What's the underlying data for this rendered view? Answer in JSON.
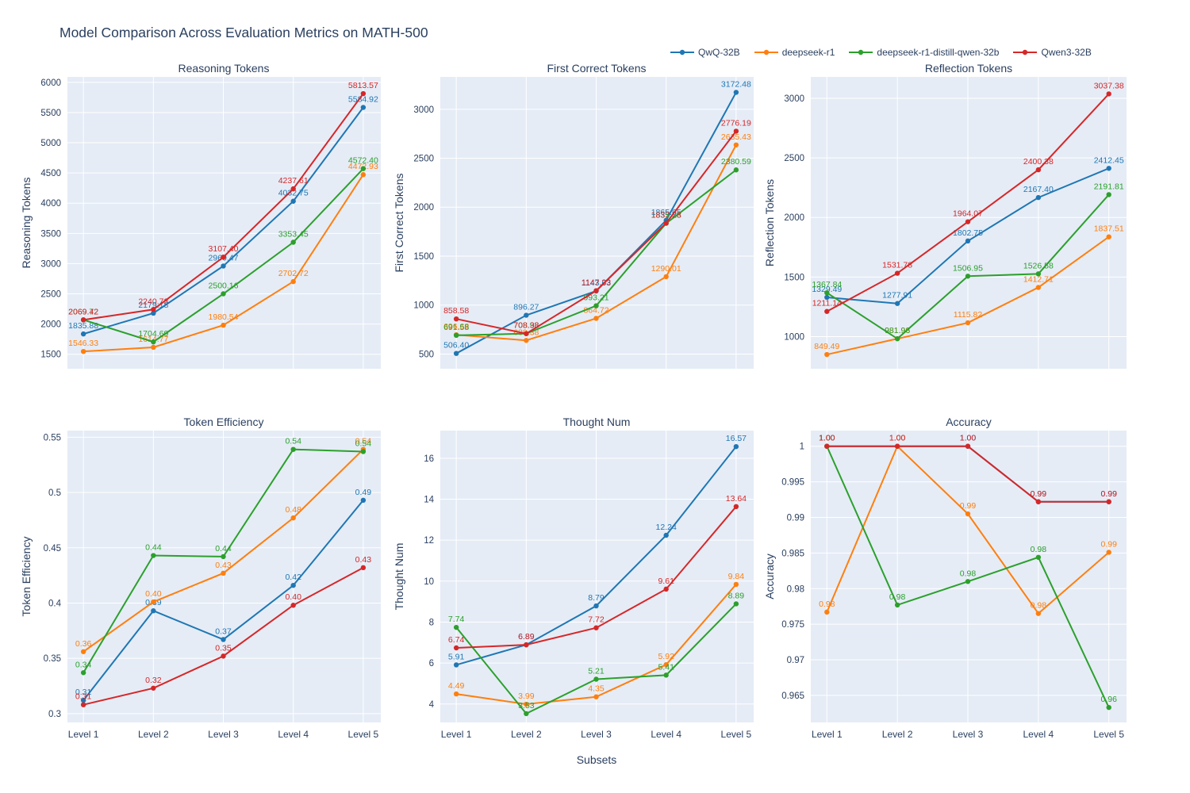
{
  "title": "Model Comparison Across Evaluation Metrics on MATH-500",
  "xlabel": "Subsets",
  "categories": [
    "Level 1",
    "Level 2",
    "Level 3",
    "Level 4",
    "Level 5"
  ],
  "models": [
    {
      "name": "QwQ-32B",
      "color": "#1f77b4"
    },
    {
      "name": "deepseek-r1",
      "color": "#ff7f0e"
    },
    {
      "name": "deepseek-r1-distill-qwen-32b",
      "color": "#2ca02c"
    },
    {
      "name": "Qwen3-32B",
      "color": "#d62728"
    }
  ],
  "style": {
    "plot_bg": "#e5ecf6",
    "grid": "#ffffff",
    "text": "#2a3f5f"
  },
  "chart_data": [
    {
      "type": "line",
      "title": "Reasoning Tokens",
      "ylabel": "Reasoning Tokens",
      "categories": [
        "Level 1",
        "Level 2",
        "Level 3",
        "Level 4",
        "Level 5"
      ],
      "yticks": [
        1500,
        2000,
        2500,
        3000,
        3500,
        4000,
        4500,
        5000,
        5500,
        6000
      ],
      "ylim": [
        1260,
        6090
      ],
      "series": [
        {
          "name": "QwQ-32B",
          "values": [
            1835.88,
            2179.18,
            2960.47,
            4032.75,
            5584.92
          ]
        },
        {
          "name": "deepseek-r1",
          "values": [
            1546.33,
            1614.77,
            1980.54,
            2702.72,
            4472.93
          ]
        },
        {
          "name": "deepseek-r1-distill-qwen-32b",
          "values": [
            2069.72,
            1704.69,
            2500.16,
            3353.45,
            4572.4
          ]
        },
        {
          "name": "Qwen3-32B",
          "values": [
            2069.42,
            2240.73,
            3107.4,
            4237.61,
            5813.57
          ]
        }
      ]
    },
    {
      "type": "line",
      "title": "First Correct Tokens",
      "ylabel": "First Correct Tokens",
      "categories": [
        "Level 1",
        "Level 2",
        "Level 3",
        "Level 4",
        "Level 5"
      ],
      "yticks": [
        500,
        1000,
        1500,
        2000,
        2500,
        3000
      ],
      "ylim": [
        350,
        3330
      ],
      "series": [
        {
          "name": "QwQ-32B",
          "values": [
            506.4,
            896.27,
            1143.63,
            1865.65,
            3172.48
          ]
        },
        {
          "name": "deepseek-r1",
          "values": [
            696.68,
            639.38,
            864.72,
            1290.01,
            2635.43
          ]
        },
        {
          "name": "deepseek-r1-distill-qwen-32b",
          "values": [
            691.58,
            708.98,
            993.21,
            1835.23,
            2380.59
          ]
        },
        {
          "name": "Qwen3-32B",
          "values": [
            858.58,
            708.38,
            1147.33,
            1837.28,
            2776.19
          ]
        }
      ]
    },
    {
      "type": "line",
      "title": "Reflection Tokens",
      "ylabel": "Reflection Tokens",
      "categories": [
        "Level 1",
        "Level 2",
        "Level 3",
        "Level 4",
        "Level 5"
      ],
      "yticks": [
        1000,
        1500,
        2000,
        2500,
        3000
      ],
      "ylim": [
        730,
        3180
      ],
      "series": [
        {
          "name": "QwQ-32B",
          "values": [
            1329.49,
            1277.91,
            1802.75,
            2167.4,
            2412.45
          ]
        },
        {
          "name": "deepseek-r1",
          "values": [
            849.49,
            981.98,
            1115.82,
            1412.71,
            1837.51
          ]
        },
        {
          "name": "deepseek-r1-distill-qwen-32b",
          "values": [
            1367.84,
            981.96,
            1506.95,
            1526.58,
            2191.81
          ]
        },
        {
          "name": "Qwen3-32B",
          "values": [
            1211.14,
            1531.78,
            1964.07,
            2400.38,
            3037.38
          ]
        }
      ]
    },
    {
      "type": "line",
      "title": "Token Efficiency",
      "ylabel": "Token Efficiency",
      "categories": [
        "Level 1",
        "Level 2",
        "Level 3",
        "Level 4",
        "Level 5"
      ],
      "yticks": [
        0.3,
        0.35,
        0.4,
        0.45,
        0.5,
        0.55
      ],
      "ylim": [
        0.292,
        0.556
      ],
      "series": [
        {
          "name": "QwQ-32B",
          "values": [
            0.312,
            0.393,
            0.367,
            0.416,
            0.493
          ],
          "labels": [
            "0.31",
            "0.39",
            "0.37",
            "0.42",
            "0.49"
          ]
        },
        {
          "name": "deepseek-r1",
          "values": [
            0.356,
            0.401,
            0.427,
            0.477,
            0.539
          ],
          "labels": [
            "0.36",
            "0.40",
            "0.43",
            "0.48",
            "0.54"
          ]
        },
        {
          "name": "deepseek-r1-distill-qwen-32b",
          "values": [
            0.337,
            0.443,
            0.442,
            0.539,
            0.537
          ],
          "labels": [
            "0.34",
            "0.44",
            "0.44",
            "0.54",
            "0.54"
          ]
        },
        {
          "name": "Qwen3-32B",
          "values": [
            0.308,
            0.323,
            0.352,
            0.398,
            0.432
          ],
          "labels": [
            "0.31",
            "0.32",
            "0.35",
            "0.40",
            "0.43"
          ]
        }
      ]
    },
    {
      "type": "line",
      "title": "Thought Num",
      "ylabel": "Thought Num",
      "categories": [
        "Level 1",
        "Level 2",
        "Level 3",
        "Level 4",
        "Level 5"
      ],
      "yticks": [
        4,
        6,
        8,
        10,
        12,
        14,
        16
      ],
      "ylim": [
        3.1,
        17.35
      ],
      "series": [
        {
          "name": "QwQ-32B",
          "values": [
            5.91,
            6.89,
            8.79,
            12.24,
            16.57
          ]
        },
        {
          "name": "deepseek-r1",
          "values": [
            4.49,
            3.99,
            4.35,
            5.92,
            9.84
          ]
        },
        {
          "name": "deepseek-r1-distill-qwen-32b",
          "values": [
            7.74,
            3.53,
            5.21,
            5.41,
            8.89
          ]
        },
        {
          "name": "Qwen3-32B",
          "values": [
            6.74,
            6.89,
            7.72,
            9.61,
            13.64
          ]
        }
      ]
    },
    {
      "type": "line",
      "title": "Accuracy",
      "ylabel": "Accuracy",
      "categories": [
        "Level 1",
        "Level 2",
        "Level 3",
        "Level 4",
        "Level 5"
      ],
      "yticks": [
        0.965,
        0.97,
        0.975,
        0.98,
        0.985,
        0.99,
        0.995,
        1
      ],
      "ylim": [
        0.9612,
        1.0022
      ],
      "series": [
        {
          "name": "QwQ-32B",
          "values": [
            1.0,
            1.0,
            1.0,
            0.9922,
            0.9922
          ],
          "labels": [
            "1.00",
            "1.00",
            "1.00",
            "0.99",
            "0.99"
          ]
        },
        {
          "name": "deepseek-r1",
          "values": [
            0.9767,
            1.0,
            0.9905,
            0.9765,
            0.9851
          ],
          "labels": [
            "0.98",
            "1.00",
            "0.99",
            "0.98",
            "0.99"
          ]
        },
        {
          "name": "deepseek-r1-distill-qwen-32b",
          "values": [
            1.0,
            0.9777,
            0.981,
            0.9844,
            0.9633
          ],
          "labels": [
            "1.00",
            "0.98",
            "0.98",
            "0.98",
            "0.96"
          ]
        },
        {
          "name": "Qwen3-32B",
          "values": [
            1.0,
            1.0,
            1.0,
            0.9922,
            0.9922
          ],
          "labels": [
            "1.00",
            "1.00",
            "1.00",
            "0.99",
            "0.99"
          ]
        }
      ]
    }
  ]
}
